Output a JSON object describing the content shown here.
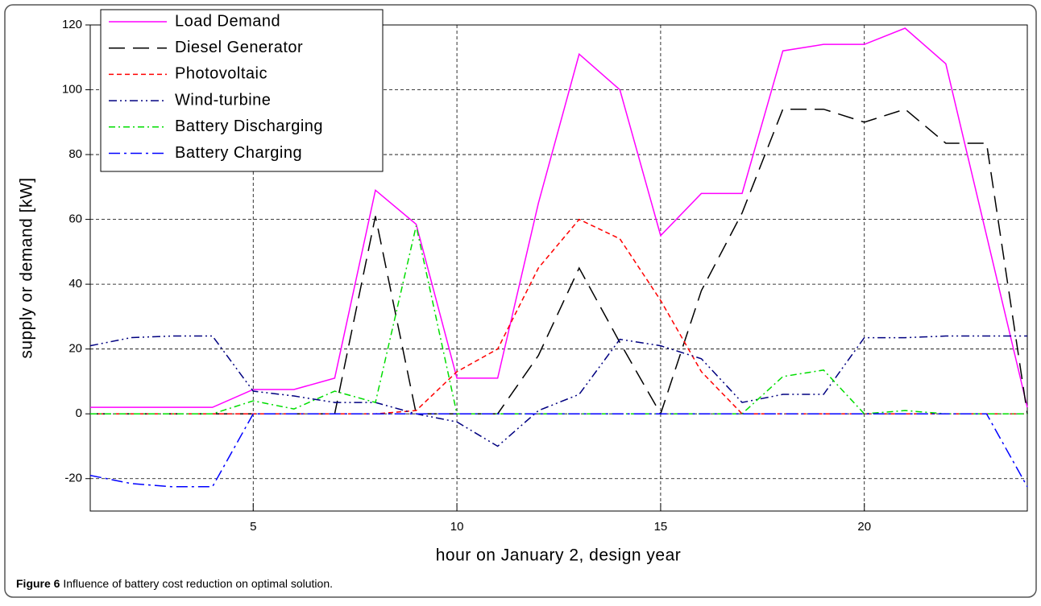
{
  "chart_data": {
    "type": "line",
    "x_label": "hour on January 2, design year",
    "y_label": "supply or demand [kW]",
    "x": [
      1,
      2,
      3,
      4,
      5,
      6,
      7,
      8,
      9,
      10,
      11,
      12,
      13,
      14,
      15,
      16,
      17,
      18,
      19,
      20,
      21,
      22,
      23,
      24
    ],
    "xlim": [
      1,
      24
    ],
    "xticks": [
      5,
      10,
      15,
      20
    ],
    "ylim": [
      -30,
      120
    ],
    "yticks": [
      -20,
      0,
      20,
      40,
      60,
      80,
      100,
      120
    ],
    "grid": true,
    "legend": "upper left",
    "series": [
      {
        "name": "Load Demand",
        "color": "#ff00ff",
        "dash": "none",
        "values": [
          2,
          2,
          2,
          2,
          7.5,
          7.5,
          11,
          69,
          58.5,
          11,
          11,
          65,
          111,
          100,
          55,
          68,
          68,
          112,
          114,
          114,
          119,
          108,
          55,
          2
        ]
      },
      {
        "name": "Diesel Generator",
        "color": "#000000",
        "dash": "20,10",
        "values": [
          0,
          0,
          0,
          0,
          0,
          0,
          0,
          61,
          0,
          0,
          0,
          18,
          45,
          22,
          0,
          38,
          62,
          94,
          94,
          90,
          94,
          83.5,
          83.5,
          0
        ]
      },
      {
        "name": "Photovoltaic",
        "color": "#ff0000",
        "dash": "6,4",
        "values": [
          0,
          0,
          0,
          0,
          0,
          0,
          0,
          0,
          1,
          13,
          20,
          45,
          60,
          54,
          35,
          13,
          0,
          0,
          0,
          0,
          0,
          0,
          0,
          0
        ]
      },
      {
        "name": "Wind-turbine",
        "color": "#000080",
        "dash": "10,4,2,4,2,4",
        "values": [
          21,
          23.5,
          24,
          24,
          7,
          5.5,
          3.5,
          3.5,
          0,
          -2.5,
          -10,
          1,
          6,
          23,
          21,
          17,
          3.5,
          6,
          6,
          23.5,
          23.5,
          24,
          24,
          24
        ]
      },
      {
        "name": "Battery Discharging",
        "color": "#00dd00",
        "dash": "8,4,2,4",
        "values": [
          0,
          0,
          0,
          0,
          4,
          1.5,
          7,
          3.5,
          58,
          0,
          0,
          0,
          0,
          0,
          0,
          0,
          0,
          11.5,
          13.5,
          0,
          1,
          0,
          0,
          0
        ]
      },
      {
        "name": "Battery Charging",
        "color": "#0000ff",
        "dash": "14,5,3,5",
        "values": [
          -19,
          -21.5,
          -22.5,
          -22.5,
          0,
          0,
          0,
          0,
          0,
          0,
          0,
          0,
          0,
          0,
          0,
          0,
          0,
          0,
          0,
          0,
          0,
          0,
          0,
          -22.5
        ]
      }
    ],
    "caption": {
      "label": "Figure 6",
      "text": "Influence of battery cost reduction on optimal solution."
    }
  }
}
